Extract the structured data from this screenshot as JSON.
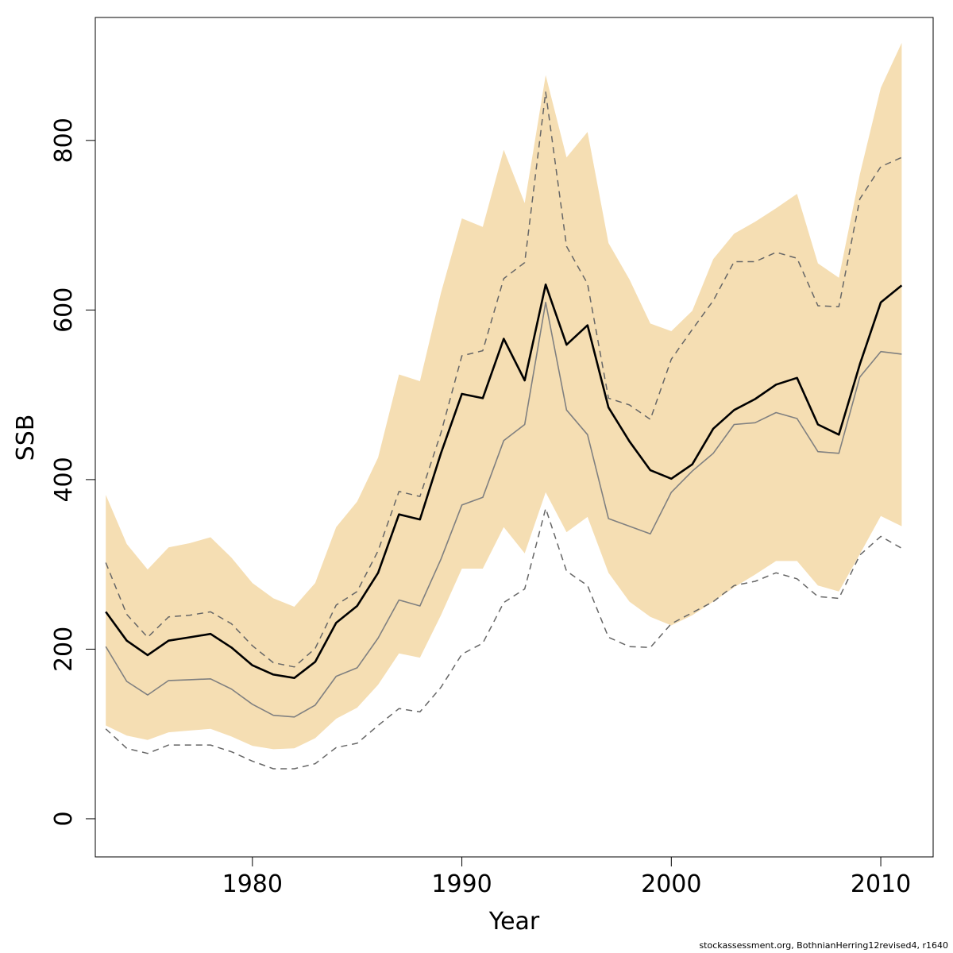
{
  "chart_data": {
    "type": "line",
    "title": "",
    "xlabel": "Year",
    "ylabel": "SSB",
    "xlim": [
      1972.5,
      2012.5
    ],
    "ylim": [
      -45,
      945
    ],
    "x_ticks": [
      1980,
      1990,
      2000,
      2010
    ],
    "y_ticks": [
      0,
      200,
      400,
      600,
      800
    ],
    "grid": false,
    "legend": "none",
    "colors": {
      "band": "#F5DEB3",
      "estimate": "#000000",
      "secondary": "#808080",
      "dashed": "#666666"
    },
    "x": [
      1973,
      1974,
      1975,
      1976,
      1977,
      1978,
      1979,
      1980,
      1981,
      1982,
      1983,
      1984,
      1985,
      1986,
      1987,
      1988,
      1989,
      1990,
      1991,
      1992,
      1993,
      1994,
      1995,
      1996,
      1997,
      1998,
      1999,
      2000,
      2001,
      2002,
      2003,
      2004,
      2005,
      2006,
      2007,
      2008,
      2009,
      2010,
      2011
    ],
    "band_upper": [
      382,
      324,
      294,
      320,
      325,
      332,
      308,
      278,
      260,
      250,
      278,
      344,
      374,
      426,
      524,
      516,
      620,
      708,
      698,
      789,
      726,
      877,
      780,
      810,
      679,
      636,
      584,
      575,
      599,
      660,
      690,
      704,
      720,
      737,
      655,
      638,
      760,
      862,
      915
    ],
    "band_lower": [
      110,
      98,
      93,
      102,
      104,
      106,
      97,
      86,
      82,
      83,
      95,
      118,
      131,
      158,
      195,
      190,
      240,
      295,
      295,
      344,
      313,
      385,
      338,
      356,
      290,
      256,
      238,
      228,
      240,
      256,
      273,
      288,
      304,
      304,
      275,
      268,
      312,
      357,
      345
    ],
    "series": [
      {
        "style": "thick-black",
        "values": [
          244,
          210,
          193,
          210,
          214,
          218,
          202,
          181,
          170,
          166,
          185,
          231,
          251,
          290,
          359,
          353,
          431,
          501,
          496,
          566,
          517,
          630,
          559,
          582,
          485,
          445,
          411,
          401,
          418,
          460,
          482,
          495,
          512,
          520,
          465,
          453,
          536,
          609,
          629
        ]
      },
      {
        "style": "thin-gray",
        "values": [
          203,
          162,
          146,
          163,
          164,
          165,
          153,
          135,
          122,
          120,
          134,
          168,
          178,
          213,
          258,
          251,
          306,
          370,
          379,
          446,
          465,
          609,
          482,
          453,
          354,
          345,
          336,
          385,
          410,
          431,
          465,
          467,
          479,
          472,
          433,
          431,
          521,
          551,
          548
        ]
      },
      {
        "style": "dashed-upper",
        "values": [
          302,
          241,
          214,
          238,
          240,
          244,
          230,
          204,
          184,
          179,
          201,
          252,
          268,
          316,
          386,
          380,
          455,
          546,
          552,
          637,
          656,
          857,
          675,
          631,
          496,
          488,
          471,
          542,
          577,
          611,
          657,
          657,
          668,
          661,
          605,
          604,
          731,
          769,
          780
        ]
      },
      {
        "style": "dashed-lower",
        "values": [
          106,
          83,
          77,
          87,
          87,
          87,
          79,
          68,
          59,
          59,
          65,
          84,
          89,
          110,
          130,
          126,
          155,
          194,
          207,
          255,
          271,
          366,
          292,
          275,
          214,
          203,
          202,
          230,
          243,
          256,
          275,
          280,
          290,
          283,
          262,
          260,
          311,
          333,
          319
        ]
      }
    ]
  },
  "footer": {
    "credit": "stockassessment.org, BothnianHerring12revised4, r1640"
  }
}
